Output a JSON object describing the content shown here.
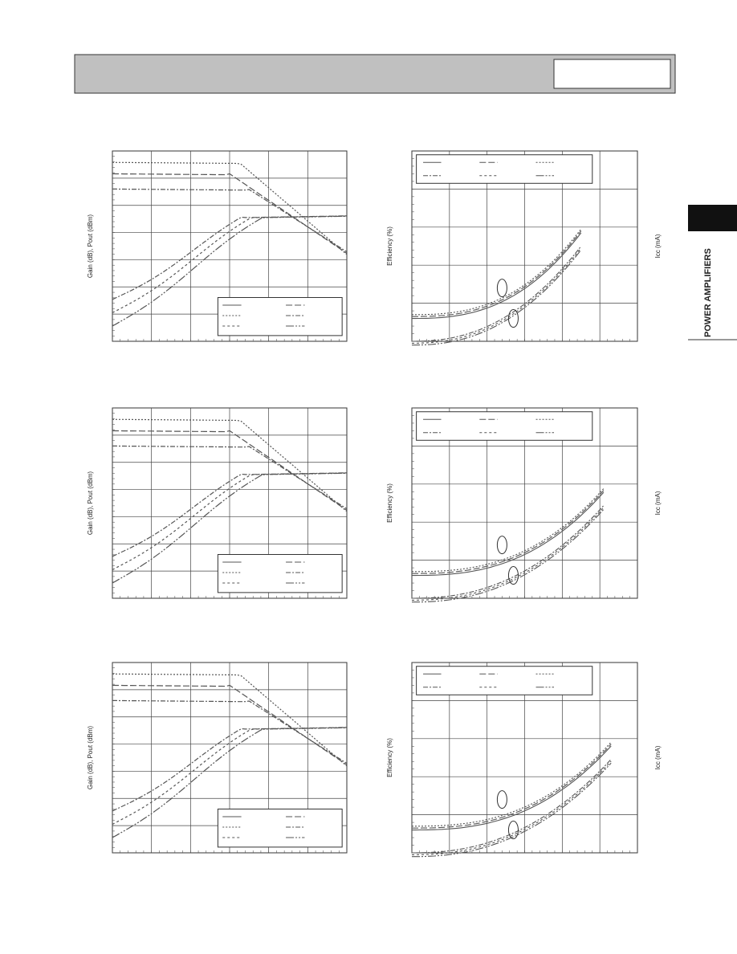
{
  "left_charts": [
    {
      "y_label": "Gain (dB), Pout (dBm)"
    },
    {
      "y_label": "Gain (dB), Pout (dBm)"
    },
    {
      "y_label": "Gain (dB), Pout (dBm)"
    }
  ],
  "right_charts": [
    {
      "y_label": "Efficiency (%)",
      "y2_label": "Icc (mA)"
    },
    {
      "y_label": "Efficiency (%)",
      "y2_label": "Icc (mA)"
    },
    {
      "y_label": "Efficiency (%)",
      "y2_label": "Icc (mA)"
    }
  ],
  "side_tab": "POWER AMPLIFIERS"
}
